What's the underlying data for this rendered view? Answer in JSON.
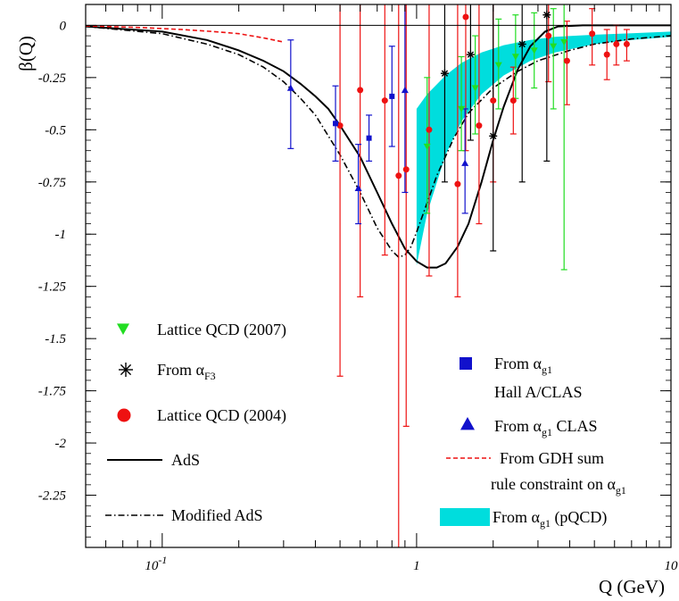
{
  "chart_data": {
    "type": "scatter",
    "x_scale": "log",
    "xlim": [
      0.05,
      10
    ],
    "ylim": [
      -2.5,
      0.1
    ],
    "xlabel": "Q (GeV)",
    "ylabel": "β(Q)",
    "x_ticks": [
      {
        "value": 0.1,
        "base": "10",
        "exp": "-1"
      },
      {
        "value": 1,
        "base": "1",
        "exp": ""
      },
      {
        "value": 10,
        "base": "10",
        "exp": ""
      }
    ],
    "y_ticks": [
      {
        "value": 0,
        "label": "0"
      },
      {
        "value": -0.25,
        "label": "-0.25"
      },
      {
        "value": -0.5,
        "label": "-0.5"
      },
      {
        "value": -0.75,
        "label": "-0.75"
      },
      {
        "value": -1,
        "label": "-1"
      },
      {
        "value": -1.25,
        "label": "-1.25"
      },
      {
        "value": -1.5,
        "label": "-1.5"
      },
      {
        "value": -1.75,
        "label": "-1.75"
      },
      {
        "value": -2,
        "label": "-2"
      },
      {
        "value": -2.25,
        "label": "-2.25"
      }
    ],
    "grid": false,
    "legend": [
      {
        "key": "lattice2007",
        "text": "Lattice QCD (2007)",
        "sub": "",
        "tail": "",
        "line2": ""
      },
      {
        "key": "alphaF3",
        "text": "From α",
        "sub": "F3",
        "tail": "",
        "line2": ""
      },
      {
        "key": "lattice2004",
        "text": "Lattice QCD (2004)",
        "sub": "",
        "tail": "",
        "line2": ""
      },
      {
        "key": "ads",
        "text": "AdS",
        "sub": "",
        "tail": "",
        "line2": ""
      },
      {
        "key": "modads",
        "text": "Modified AdS",
        "sub": "",
        "tail": "",
        "line2": ""
      },
      {
        "key": "hallA",
        "text": "From α",
        "sub": "g1",
        "tail": "",
        "line2": "Hall A/CLAS"
      },
      {
        "key": "clas",
        "text": "From α",
        "sub": "g1",
        "tail": " CLAS",
        "line2": ""
      },
      {
        "key": "gdh",
        "text": "From GDH sum",
        "sub": "",
        "tail": "",
        "line2": "rule constraint on α",
        "sub2": "g1"
      },
      {
        "key": "pqcd",
        "text": "From α",
        "sub": "g1",
        "tail": " (pQCD)",
        "line2": ""
      }
    ],
    "colors": {
      "lattice2007": "#22dd22",
      "alphaF3": "#000000",
      "lattice2004": "#ee1111",
      "ads": "#000000",
      "modads": "#000000",
      "hallA": "#1111cc",
      "clas": "#1111cc",
      "gdh": "#ee1111",
      "pqcd": "#00dddd"
    },
    "series": [
      {
        "key": "lattice2004",
        "marker": "circle",
        "points": [
          {
            "x": 0.6,
            "y": -0.31,
            "lo": -1.3,
            "hi": 0.1
          },
          {
            "x": 0.5,
            "y": -0.48,
            "lo": -1.68,
            "hi": 0.1
          },
          {
            "x": 0.75,
            "y": -0.36,
            "lo": -1.1,
            "hi": 0.1
          },
          {
            "x": 0.85,
            "y": -0.72,
            "lo": -2.5,
            "hi": 0.1
          },
          {
            "x": 0.91,
            "y": -0.69,
            "lo": -1.92,
            "hi": 0.1
          },
          {
            "x": 1.12,
            "y": -0.5,
            "lo": -1.2,
            "hi": 0.1
          },
          {
            "x": 1.45,
            "y": -0.76,
            "lo": -1.3,
            "hi": 0.1
          },
          {
            "x": 1.56,
            "y": 0.04,
            "lo": -0.6,
            "hi": 0.1
          },
          {
            "x": 1.76,
            "y": -0.48,
            "lo": -0.95,
            "hi": 0.1
          },
          {
            "x": 2.0,
            "y": -0.36,
            "lo": -0.75,
            "hi": 0.1
          },
          {
            "x": 2.4,
            "y": -0.36,
            "lo": -0.52,
            "hi": -0.2
          },
          {
            "x": 3.3,
            "y": -0.05,
            "lo": -0.27,
            "hi": 0.1
          },
          {
            "x": 3.9,
            "y": -0.17,
            "lo": -0.38,
            "hi": 0.02
          },
          {
            "x": 4.9,
            "y": -0.04,
            "lo": -0.19,
            "hi": 0.08
          },
          {
            "x": 5.6,
            "y": -0.14,
            "lo": -0.26,
            "hi": -0.02
          },
          {
            "x": 6.1,
            "y": -0.09,
            "lo": -0.19,
            "hi": 0.0
          },
          {
            "x": 6.7,
            "y": -0.09,
            "lo": -0.17,
            "hi": -0.02
          }
        ]
      },
      {
        "key": "lattice2007",
        "marker": "triangle-down",
        "points": [
          {
            "x": 1.1,
            "y": -0.58,
            "lo": -0.9,
            "hi": -0.25
          },
          {
            "x": 1.5,
            "y": -0.4,
            "lo": -0.6,
            "hi": -0.15
          },
          {
            "x": 1.7,
            "y": -0.3,
            "lo": -0.52,
            "hi": -0.05
          },
          {
            "x": 2.1,
            "y": -0.19,
            "lo": -0.4,
            "hi": 0.03
          },
          {
            "x": 2.45,
            "y": -0.15,
            "lo": -0.35,
            "hi": 0.05
          },
          {
            "x": 2.9,
            "y": -0.12,
            "lo": -0.3,
            "hi": 0.06
          },
          {
            "x": 3.45,
            "y": -0.1,
            "lo": -0.4,
            "hi": 0.08
          },
          {
            "x": 3.8,
            "y": -0.08,
            "lo": -1.17,
            "hi": 0.1
          }
        ]
      },
      {
        "key": "alphaF3",
        "marker": "star",
        "points": [
          {
            "x": 1.29,
            "y": -0.23,
            "lo": -0.75,
            "hi": 0.1
          },
          {
            "x": 1.63,
            "y": -0.14,
            "lo": -0.55,
            "hi": 0.1
          },
          {
            "x": 2.0,
            "y": -0.53,
            "lo": -1.08,
            "hi": 0.1
          },
          {
            "x": 2.6,
            "y": -0.09,
            "lo": -0.75,
            "hi": 0.1
          },
          {
            "x": 3.25,
            "y": 0.05,
            "lo": -0.65,
            "hi": 0.1
          }
        ]
      },
      {
        "key": "hallA",
        "marker": "square",
        "points": [
          {
            "x": 0.48,
            "y": -0.47,
            "lo": -0.65,
            "hi": -0.29
          },
          {
            "x": 0.65,
            "y": -0.54,
            "lo": -0.65,
            "hi": -0.43
          },
          {
            "x": 0.8,
            "y": -0.34,
            "lo": -0.58,
            "hi": -0.1
          }
        ]
      },
      {
        "key": "clas",
        "marker": "triangle-up",
        "points": [
          {
            "x": 0.32,
            "y": -0.3,
            "lo": -0.59,
            "hi": -0.07
          },
          {
            "x": 0.59,
            "y": -0.78,
            "lo": -0.95,
            "hi": -0.57
          },
          {
            "x": 0.9,
            "y": -0.31,
            "lo": -0.8,
            "hi": 0.1
          },
          {
            "x": 1.55,
            "y": -0.66,
            "lo": -0.9,
            "hi": -0.4
          }
        ]
      }
    ],
    "curves": [
      {
        "key": "ads",
        "style": "solid",
        "points": [
          [
            0.05,
            -0.005
          ],
          [
            0.1,
            -0.03
          ],
          [
            0.15,
            -0.07
          ],
          [
            0.2,
            -0.12
          ],
          [
            0.25,
            -0.17
          ],
          [
            0.3,
            -0.22
          ],
          [
            0.35,
            -0.28
          ],
          [
            0.4,
            -0.34
          ],
          [
            0.45,
            -0.4
          ],
          [
            0.5,
            -0.48
          ],
          [
            0.6,
            -0.63
          ],
          [
            0.7,
            -0.8
          ],
          [
            0.8,
            -0.95
          ],
          [
            0.9,
            -1.07
          ],
          [
            1.0,
            -1.13
          ],
          [
            1.1,
            -1.16
          ],
          [
            1.2,
            -1.16
          ],
          [
            1.3,
            -1.14
          ],
          [
            1.45,
            -1.06
          ],
          [
            1.6,
            -0.95
          ],
          [
            1.8,
            -0.75
          ],
          [
            2.0,
            -0.55
          ],
          [
            2.2,
            -0.39
          ],
          [
            2.5,
            -0.21
          ],
          [
            2.8,
            -0.1
          ],
          [
            3.2,
            -0.03
          ],
          [
            3.6,
            -0.005
          ],
          [
            4.5,
            0.0
          ],
          [
            10,
            0.0
          ]
        ]
      },
      {
        "key": "modads",
        "style": "dashdot",
        "points": [
          [
            0.05,
            -0.005
          ],
          [
            0.1,
            -0.04
          ],
          [
            0.15,
            -0.09
          ],
          [
            0.2,
            -0.14
          ],
          [
            0.25,
            -0.2
          ],
          [
            0.3,
            -0.27
          ],
          [
            0.35,
            -0.35
          ],
          [
            0.4,
            -0.43
          ],
          [
            0.5,
            -0.62
          ],
          [
            0.6,
            -0.8
          ],
          [
            0.7,
            -0.97
          ],
          [
            0.8,
            -1.08
          ],
          [
            0.85,
            -1.11
          ],
          [
            0.9,
            -1.1
          ],
          [
            0.95,
            -1.06
          ],
          [
            1.0,
            -0.99
          ],
          [
            1.1,
            -0.85
          ],
          [
            1.2,
            -0.72
          ],
          [
            1.4,
            -0.54
          ],
          [
            1.6,
            -0.42
          ],
          [
            2.0,
            -0.3
          ],
          [
            2.5,
            -0.22
          ],
          [
            3.0,
            -0.17
          ],
          [
            4.0,
            -0.12
          ],
          [
            5.0,
            -0.09
          ],
          [
            7.0,
            -0.065
          ],
          [
            10,
            -0.05
          ]
        ]
      },
      {
        "key": "gdh",
        "style": "dashed",
        "points": [
          [
            0.05,
            -0.002
          ],
          [
            0.08,
            -0.01
          ],
          [
            0.12,
            -0.02
          ],
          [
            0.16,
            -0.03
          ],
          [
            0.2,
            -0.04
          ],
          [
            0.25,
            -0.06
          ],
          [
            0.3,
            -0.08
          ]
        ]
      }
    ],
    "bands": [
      {
        "key": "pqcd",
        "upper": [
          [
            1.0,
            -0.4
          ],
          [
            1.1,
            -0.33
          ],
          [
            1.3,
            -0.24
          ],
          [
            1.5,
            -0.18
          ],
          [
            1.8,
            -0.13
          ],
          [
            2.2,
            -0.095
          ],
          [
            2.8,
            -0.07
          ],
          [
            3.5,
            -0.055
          ],
          [
            5.0,
            -0.045
          ],
          [
            7.0,
            -0.038
          ],
          [
            10,
            -0.03
          ]
        ],
        "lower": [
          [
            1.0,
            -1.15
          ],
          [
            1.1,
            -0.9
          ],
          [
            1.3,
            -0.62
          ],
          [
            1.5,
            -0.46
          ],
          [
            1.8,
            -0.33
          ],
          [
            2.2,
            -0.24
          ],
          [
            2.8,
            -0.17
          ],
          [
            3.5,
            -0.13
          ],
          [
            5.0,
            -0.09
          ],
          [
            7.0,
            -0.07
          ],
          [
            10,
            -0.055
          ]
        ]
      }
    ]
  }
}
